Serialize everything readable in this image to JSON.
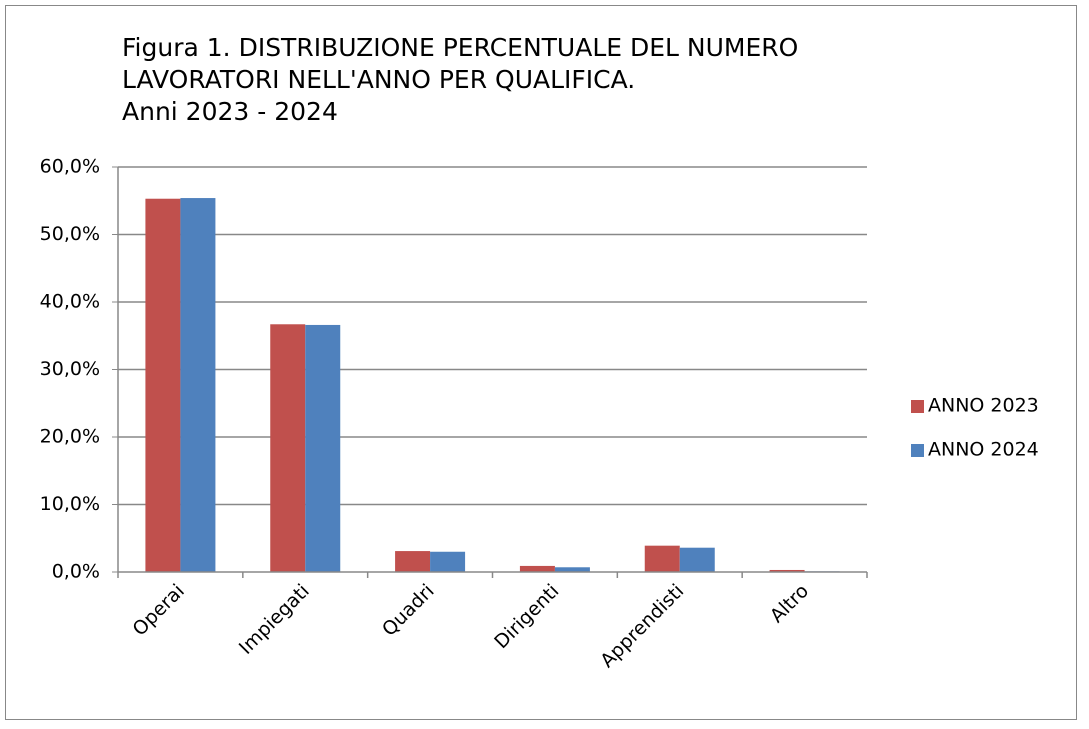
{
  "chart_data": {
    "type": "bar",
    "title": [
      "Figura 1. DISTRIBUZIONE PERCENTUALE DEL NUMERO",
      "LAVORATORI NELL'ANNO PER QUALIFICA.",
      "Anni 2023 -  2024"
    ],
    "categories": [
      "Operai",
      "Impiegati",
      "Quadri",
      "Dirigenti",
      "Apprendisti",
      "Altro"
    ],
    "series": [
      {
        "name": "ANNO 2023",
        "color": "#c0504d",
        "values": [
          55.3,
          36.7,
          3.1,
          0.9,
          3.9,
          0.3
        ]
      },
      {
        "name": "ANNO 2024",
        "color": "#4f81bd",
        "values": [
          55.4,
          36.6,
          3.0,
          0.7,
          3.6,
          0.1
        ]
      }
    ],
    "ylim": [
      0,
      60
    ],
    "yticks": [
      {
        "value": 0,
        "label": "0,0%"
      },
      {
        "value": 10,
        "label": "10,0%"
      },
      {
        "value": 20,
        "label": "20,0%"
      },
      {
        "value": 30,
        "label": "30,0%"
      },
      {
        "value": 40,
        "label": "40,0%"
      },
      {
        "value": 50,
        "label": "50,0%"
      },
      {
        "value": 60,
        "label": "60,0%"
      }
    ],
    "grid": true,
    "legend": "right"
  }
}
